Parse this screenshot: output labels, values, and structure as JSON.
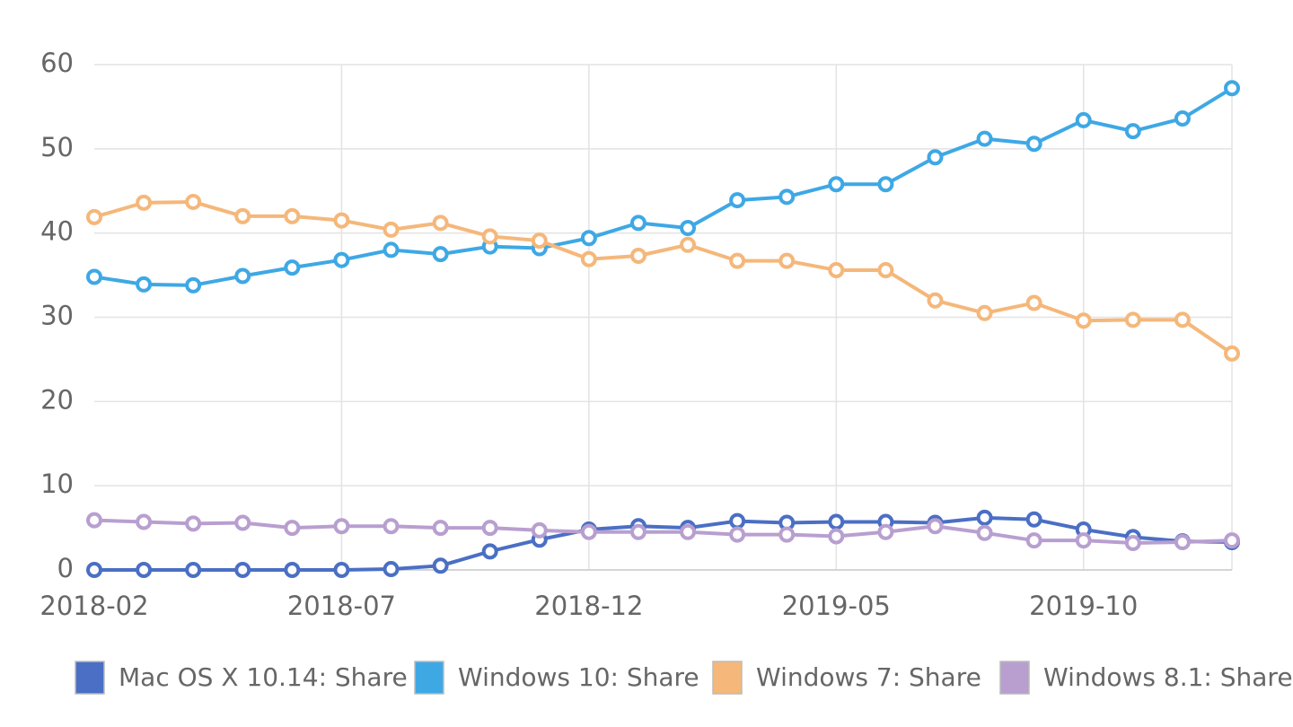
{
  "chart_data": {
    "type": "line",
    "categories": [
      "2018-02",
      null,
      null,
      null,
      null,
      "2018-07",
      null,
      null,
      null,
      null,
      "2018-12",
      null,
      null,
      null,
      null,
      "2019-05",
      null,
      null,
      null,
      null,
      "2019-10",
      null,
      null,
      null
    ],
    "series": [
      {
        "name": "Mac OS X 10.14: Share",
        "color": "#4a6fc4",
        "values": [
          0,
          0,
          0,
          0,
          0,
          0,
          0.1,
          0.5,
          2.2,
          3.6,
          4.8,
          5.2,
          5.0,
          5.8,
          5.6,
          5.7,
          5.7,
          5.6,
          6.2,
          6.0,
          4.8,
          3.9,
          3.4,
          3.3
        ]
      },
      {
        "name": "Windows 10: Share",
        "color": "#3ea8e5",
        "values": [
          34.8,
          33.9,
          33.8,
          34.9,
          35.9,
          36.8,
          38.0,
          37.5,
          38.4,
          38.2,
          39.4,
          41.2,
          40.6,
          43.9,
          44.3,
          45.8,
          45.8,
          49.0,
          51.2,
          50.6,
          53.4,
          52.1,
          53.6,
          57.2
        ]
      },
      {
        "name": "Windows 7: Share",
        "color": "#f5b77a",
        "values": [
          41.9,
          43.6,
          43.7,
          42.0,
          42.0,
          41.5,
          40.4,
          41.2,
          39.6,
          39.1,
          36.9,
          37.3,
          38.6,
          36.7,
          36.7,
          35.6,
          35.6,
          32.0,
          30.5,
          31.7,
          29.6,
          29.7,
          29.7,
          25.7
        ]
      },
      {
        "name": "Windows 8.1: Share",
        "color": "#b89fd0",
        "values": [
          5.9,
          5.7,
          5.5,
          5.6,
          5.0,
          5.2,
          5.2,
          5.0,
          5.0,
          4.7,
          4.5,
          4.5,
          4.5,
          4.2,
          4.2,
          4.0,
          4.5,
          5.2,
          4.4,
          3.5,
          3.5,
          3.2,
          3.3,
          3.5
        ]
      }
    ],
    "ylim": [
      0,
      60
    ],
    "yticks": [
      0,
      10,
      20,
      30,
      40,
      50,
      60
    ],
    "grid": true,
    "legend": "bottom"
  }
}
